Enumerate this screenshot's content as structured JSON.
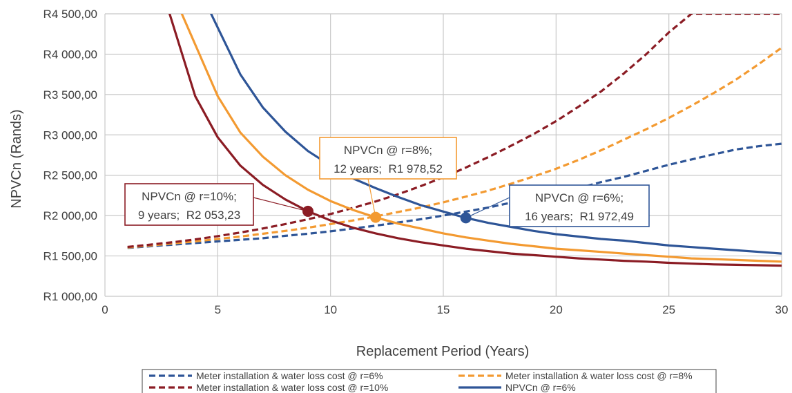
{
  "chart_data": {
    "type": "line",
    "title": "",
    "xlabel": "Replacement Period (Years)",
    "ylabel": "NPVCn (Rands)",
    "xlim": [
      0,
      30
    ],
    "ylim": [
      1000,
      4500
    ],
    "x_ticks": [
      "0",
      "5",
      "10",
      "15",
      "20",
      "25",
      "30"
    ],
    "y_ticks": [
      "R1 000,00",
      "R1 500,00",
      "R2 000,00",
      "R2 500,00",
      "R3 000,00",
      "R3 500,00",
      "R4 000,00",
      "R4 500,00"
    ],
    "grid": true,
    "legend_position": "bottom",
    "x": [
      1,
      2,
      3,
      4,
      5,
      6,
      7,
      8,
      9,
      10,
      11,
      12,
      13,
      14,
      15,
      16,
      17,
      18,
      19,
      20,
      21,
      22,
      23,
      24,
      25,
      26,
      27,
      28,
      29,
      30
    ],
    "series": [
      {
        "name": "Meter installation & water loss cost @ r=6%",
        "color": "#2e5597",
        "style": "dashed",
        "values": [
          1600,
          1620,
          1640,
          1660,
          1680,
          1700,
          1720,
          1750,
          1775,
          1805,
          1840,
          1875,
          1915,
          1955,
          2000,
          2050,
          2100,
          2160,
          2210,
          2280,
          2340,
          2415,
          2480,
          2555,
          2630,
          2695,
          2760,
          2820,
          2860,
          2890
        ]
      },
      {
        "name": "Meter installation & water loss cost @ r=8%",
        "color": "#f39a31",
        "style": "dashed",
        "values": [
          1605,
          1630,
          1655,
          1680,
          1710,
          1740,
          1775,
          1810,
          1850,
          1895,
          1940,
          1990,
          2045,
          2100,
          2165,
          2235,
          2310,
          2395,
          2485,
          2580,
          2690,
          2810,
          2940,
          3070,
          3210,
          3360,
          3520,
          3690,
          3880,
          4080
        ]
      },
      {
        "name": "Meter installation & water loss cost @ r=10%",
        "color": "#8b1c24",
        "style": "dashed",
        "values": [
          1612,
          1640,
          1670,
          1705,
          1745,
          1790,
          1840,
          1895,
          1955,
          2020,
          2095,
          2175,
          2265,
          2365,
          2475,
          2595,
          2725,
          2865,
          3010,
          3170,
          3350,
          3540,
          3760,
          4000,
          4270,
          4500,
          4500,
          4500,
          4500,
          4500
        ]
      },
      {
        "name": "NPVCn @ r=6%",
        "color": "#2e5597",
        "style": "solid",
        "values": [
          null,
          null,
          null,
          null,
          4330,
          3750,
          3340,
          3040,
          2800,
          2620,
          2460,
          2340,
          2230,
          2130,
          2050,
          1972.49,
          1910,
          1860,
          1810,
          1770,
          1740,
          1710,
          1690,
          1660,
          1630,
          1610,
          1590,
          1570,
          1550,
          1530
        ]
      },
      {
        "name": "NPVCn @ r=8%",
        "color": "#f39a31",
        "style": "solid",
        "values": [
          null,
          null,
          null,
          4120,
          3480,
          3030,
          2730,
          2500,
          2320,
          2180,
          2070,
          1978.52,
          1900,
          1840,
          1780,
          1730,
          1690,
          1650,
          1620,
          1590,
          1570,
          1550,
          1530,
          1510,
          1490,
          1470,
          1460,
          1450,
          1440,
          1430
        ]
      },
      {
        "name": "NPVCn @ r=10%",
        "color": "#8b1c24",
        "style": "solid",
        "values": [
          null,
          null,
          4380,
          3480,
          2970,
          2620,
          2380,
          2200,
          2053.23,
          1940,
          1850,
          1780,
          1720,
          1670,
          1630,
          1590,
          1560,
          1530,
          1510,
          1490,
          1470,
          1455,
          1440,
          1430,
          1415,
          1405,
          1395,
          1390,
          1385,
          1380
        ]
      }
    ],
    "highlight_points": [
      {
        "x": 9,
        "y": 2053.23,
        "color": "#8b1c24"
      },
      {
        "x": 12,
        "y": 1978.52,
        "color": "#f39a31"
      },
      {
        "x": 16,
        "y": 1972.49,
        "color": "#2e5597"
      }
    ],
    "annotations": [
      {
        "line1": "NPVCn @ r=10%;",
        "line2": "9 years;  R2 053,23",
        "border": "#8b1c24"
      },
      {
        "line1": "NPVCn @ r=8%;",
        "line2": "12 years;  R1 978,52",
        "border": "#f39a31"
      },
      {
        "line1": "NPVCn @ r=6%;",
        "line2": "16 years;  R1 972,49",
        "border": "#2e5597"
      }
    ]
  }
}
